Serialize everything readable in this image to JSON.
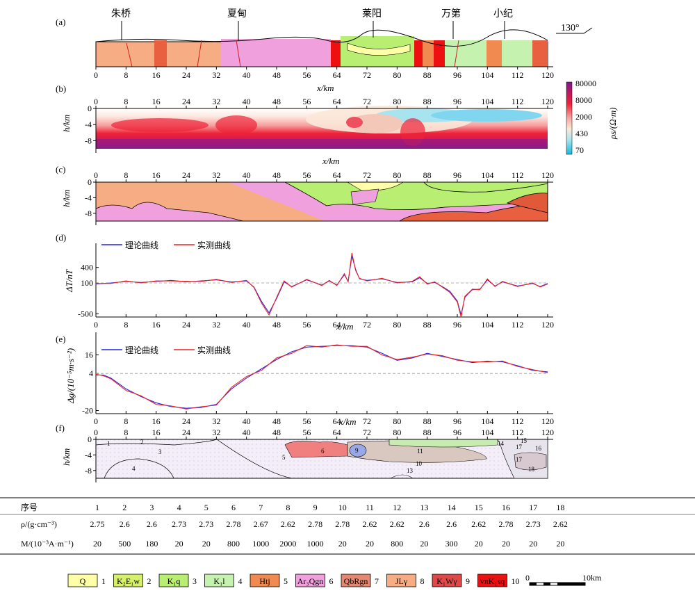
{
  "panels": [
    {
      "id": "a",
      "label": "(a)"
    },
    {
      "id": "b",
      "label": "(b)"
    },
    {
      "id": "c",
      "label": "(c)"
    },
    {
      "id": "d",
      "label": "(d)"
    },
    {
      "id": "e",
      "label": "(e)"
    },
    {
      "id": "f",
      "label": "(f)"
    }
  ],
  "towns": [
    {
      "name": "朱桥",
      "x_km": 7
    },
    {
      "name": "夏甸",
      "x_km": 38.5
    },
    {
      "name": "莱阳",
      "x_km": 75
    },
    {
      "name": "万第",
      "x_km": 96
    },
    {
      "name": "小纪",
      "x_km": 109
    }
  ],
  "azimuth": "130°",
  "x_axis": {
    "label": "x/km",
    "ticks": [
      "0",
      "8",
      "16",
      "24",
      "32",
      "40",
      "48",
      "56",
      "64",
      "72",
      "80",
      "88",
      "96",
      "104",
      "112",
      "120"
    ]
  },
  "depth_axis": {
    "label": "h/km",
    "ticks": [
      "0",
      "-4",
      "-8"
    ]
  },
  "resistivity_colorbar": {
    "label": "ρs/(Ω·m)",
    "ticks": [
      "80000",
      "8000",
      "2000",
      "430",
      "70"
    ]
  },
  "chart_data": [
    {
      "type": "line",
      "panel": "d",
      "ylabel": "ΔT/nT",
      "yticks": [
        "400",
        "100",
        "-500"
      ],
      "ylim": [
        -560,
        760
      ],
      "xlabel": "x/km",
      "reference_line": 100,
      "legend_position": "top-left",
      "series": [
        {
          "name": "理论曲线",
          "color": "#2222ee",
          "x": [
            0,
            4,
            8,
            12,
            16,
            20,
            24,
            28,
            32,
            36,
            40,
            42,
            44,
            46,
            48,
            50,
            52,
            56,
            60,
            62,
            64,
            66,
            67,
            68,
            69,
            70,
            72,
            76,
            80,
            84,
            86,
            88,
            90,
            92,
            94,
            96,
            97,
            98,
            99,
            100,
            102,
            104,
            106,
            108,
            112,
            116,
            118,
            120
          ],
          "y": [
            80,
            100,
            130,
            110,
            130,
            150,
            120,
            140,
            160,
            120,
            140,
            20,
            -260,
            -480,
            -200,
            120,
            30,
            160,
            60,
            140,
            60,
            260,
            130,
            620,
            360,
            180,
            150,
            180,
            110,
            120,
            200,
            90,
            110,
            30,
            -60,
            -250,
            -520,
            -180,
            -100,
            -30,
            -20,
            160,
            40,
            120,
            40,
            90,
            30,
            90
          ]
        },
        {
          "name": "实测曲线",
          "color": "#ee2222",
          "x": [
            0,
            4,
            8,
            12,
            16,
            20,
            24,
            28,
            32,
            36,
            40,
            42,
            44,
            46,
            48,
            50,
            52,
            56,
            60,
            62,
            64,
            66,
            67,
            68,
            69,
            70,
            72,
            76,
            80,
            84,
            86,
            88,
            90,
            92,
            94,
            96,
            97,
            98,
            99,
            100,
            102,
            104,
            106,
            108,
            112,
            116,
            118,
            120
          ],
          "y": [
            90,
            90,
            140,
            100,
            140,
            140,
            130,
            130,
            170,
            110,
            150,
            10,
            -290,
            -520,
            -180,
            140,
            20,
            170,
            50,
            150,
            50,
            280,
            120,
            680,
            340,
            190,
            140,
            190,
            100,
            130,
            220,
            80,
            120,
            20,
            -80,
            -270,
            -560,
            -160,
            -90,
            -20,
            -30,
            180,
            30,
            130,
            30,
            100,
            20,
            80
          ]
        }
      ]
    },
    {
      "type": "line",
      "panel": "e",
      "ylabel": "Δg/(10⁻⁵m·s⁻²)",
      "yticks": [
        "16",
        "4",
        "-20"
      ],
      "ylim": [
        -22,
        27
      ],
      "xlabel": "x/km",
      "reference_line": 4,
      "legend_position": "top-left",
      "series": [
        {
          "name": "理论曲线",
          "color": "#2222ee",
          "x": [
            0,
            2,
            4,
            8,
            12,
            16,
            20,
            24,
            28,
            32,
            36,
            40,
            44,
            48,
            52,
            56,
            60,
            64,
            68,
            72,
            76,
            80,
            84,
            88,
            92,
            96,
            100,
            104,
            108,
            112,
            116,
            120
          ],
          "y": [
            3,
            3,
            1,
            -6,
            -11,
            -15,
            -17.5,
            -18.5,
            -18,
            -16,
            -6,
            1,
            7,
            13,
            18,
            21,
            21.5,
            22,
            22,
            21,
            17,
            12.5,
            14,
            17,
            15,
            13,
            11,
            12,
            11.5,
            9,
            6,
            5
          ]
        },
        {
          "name": "实测曲线",
          "color": "#ee2222",
          "x": [
            0,
            2,
            4,
            8,
            12,
            16,
            20,
            24,
            28,
            32,
            36,
            40,
            44,
            48,
            52,
            56,
            60,
            64,
            68,
            72,
            76,
            80,
            84,
            88,
            92,
            96,
            100,
            104,
            108,
            112,
            116,
            120
          ],
          "y": [
            3.5,
            2.5,
            0.5,
            -7,
            -10.5,
            -16,
            -17,
            -19,
            -17.5,
            -16.5,
            -5,
            2,
            6,
            14,
            17,
            22,
            21,
            22.5,
            21.5,
            21.5,
            16,
            13,
            14.5,
            16.5,
            15.5,
            12.5,
            11.5,
            11.5,
            12,
            8.5,
            6.5,
            4.5
          ]
        }
      ]
    }
  ],
  "section_labels": [
    "1",
    "2",
    "3",
    "4",
    "5",
    "6",
    "9",
    "10",
    "11",
    "13",
    "14",
    "15",
    "16",
    "17",
    "17",
    "18"
  ],
  "props_table": {
    "row_header": "序号",
    "rho_header": "ρ/(g·cm⁻³)",
    "m_header": "M/(10⁻³A·m⁻¹)",
    "numbers": [
      "1",
      "2",
      "3",
      "4",
      "5",
      "6",
      "7",
      "8",
      "9",
      "10",
      "11",
      "12",
      "13",
      "14",
      "15",
      "16",
      "17",
      "18"
    ],
    "rho": [
      "2.75",
      "2.6",
      "2.6",
      "2.73",
      "2.73",
      "2.78",
      "2.67",
      "2.62",
      "2.78",
      "2.78",
      "2.62",
      "2.62",
      "2.6",
      "2.6",
      "2.62",
      "2.78",
      "2.73",
      "2.62"
    ],
    "m": [
      "20",
      "500",
      "180",
      "20",
      "20",
      "800",
      "1000",
      "2000",
      "1000",
      "20",
      "20",
      "800",
      "20",
      "300",
      "20",
      "20",
      "20",
      "20"
    ]
  },
  "legend": [
    {
      "code": "Q",
      "num": "1",
      "color": "#ffffa8"
    },
    {
      "code": "K₂E₁w",
      "num": "2",
      "color": "#d6f06a"
    },
    {
      "code": "K₁q",
      "num": "3",
      "color": "#b8ee72"
    },
    {
      "code": "K₁l",
      "num": "4",
      "color": "#c6f2b0"
    },
    {
      "code": "Htj",
      "num": "5",
      "color": "#f08a50"
    },
    {
      "code": "Ar₃Qgn",
      "num": "6",
      "color": "#f0a0dc"
    },
    {
      "code": "QbRgn",
      "num": "7",
      "color": "#e48872"
    },
    {
      "code": "JLγ",
      "num": "8",
      "color": "#f7ad84"
    },
    {
      "code": "K₁Wγ",
      "num": "9",
      "color": "#e04848"
    },
    {
      "code": "vπK₁sq",
      "num": "10",
      "color": "#ee1010"
    }
  ],
  "scale_bar": {
    "start": "0",
    "end": "10km"
  }
}
